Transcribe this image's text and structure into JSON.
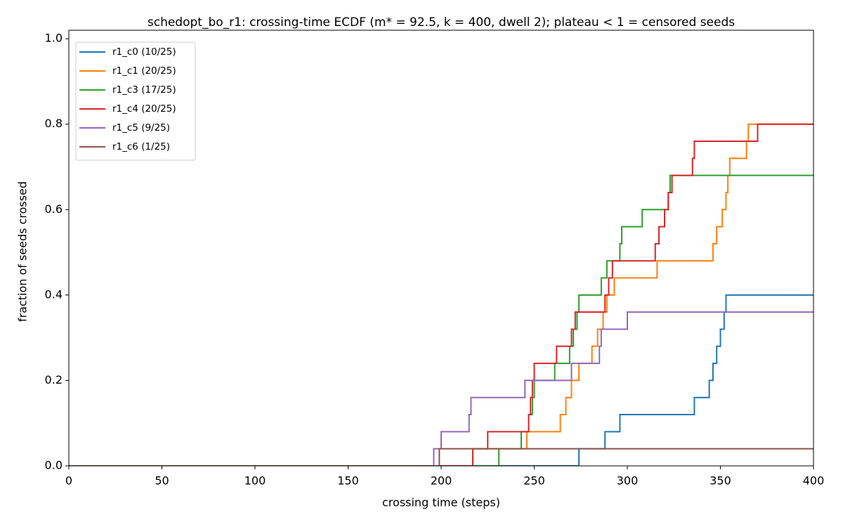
{
  "chart_data": {
    "type": "line",
    "step": "post",
    "title": "schedopt_bo_r1: crossing-time ECDF (m* = 92.5, k = 400, dwell 2); plateau < 1 = censored seeds",
    "x_label": "crossing time (steps)",
    "y_label": "fraction of seeds crossed",
    "xlim": [
      0,
      400
    ],
    "xticks": [
      0,
      50,
      100,
      150,
      200,
      250,
      300,
      350,
      400
    ],
    "ylim": [
      0,
      1.02
    ],
    "yticks": [
      {
        "value": 0,
        "label": "0.0"
      },
      0.2,
      0.4,
      0.6,
      0.8,
      {
        "value": 1,
        "label": "1.0"
      }
    ],
    "grid": false,
    "legend": "upper left",
    "series": [
      {
        "name": "r1_c0 (10/25)",
        "color": "#1f77b4",
        "x": [
          274,
          288,
          296,
          336,
          344,
          346,
          348,
          350,
          352,
          353
        ],
        "values": [
          0.04,
          0.08,
          0.12,
          0.16,
          0.2,
          0.24,
          0.28,
          0.32,
          0.36,
          0.4
        ]
      },
      {
        "name": "r1_c1 (20/25)",
        "color": "#ff7f0e",
        "x": [
          217,
          246,
          264,
          267,
          270,
          274,
          281,
          284,
          287,
          289,
          293,
          316,
          346,
          348,
          351,
          353,
          354,
          355,
          364,
          365
        ],
        "values": [
          0.04,
          0.08,
          0.12,
          0.16,
          0.2,
          0.24,
          0.28,
          0.32,
          0.36,
          0.4,
          0.44,
          0.48,
          0.52,
          0.56,
          0.6,
          0.64,
          0.68,
          0.72,
          0.76,
          0.8
        ]
      },
      {
        "name": "r1_c3 (17/25)",
        "color": "#2ca02c",
        "x": [
          231,
          243,
          247,
          249,
          250,
          261,
          269,
          271,
          273,
          274,
          286,
          289,
          296,
          297,
          308,
          322,
          323
        ],
        "values": [
          0.04,
          0.08,
          0.12,
          0.16,
          0.2,
          0.24,
          0.28,
          0.32,
          0.36,
          0.4,
          0.44,
          0.48,
          0.52,
          0.56,
          0.6,
          0.64,
          0.68
        ]
      },
      {
        "name": "r1_c4 (20/25)",
        "color": "#d62728",
        "x": [
          217,
          225,
          247,
          248,
          249,
          250,
          262,
          270,
          272,
          288,
          290,
          292,
          315,
          317,
          320,
          322,
          324,
          335,
          336,
          370
        ],
        "values": [
          0.04,
          0.08,
          0.12,
          0.16,
          0.2,
          0.24,
          0.28,
          0.32,
          0.36,
          0.4,
          0.44,
          0.48,
          0.52,
          0.56,
          0.6,
          0.64,
          0.68,
          0.72,
          0.76,
          0.8
        ]
      },
      {
        "name": "r1_c5 (9/25)",
        "color": "#9467bd",
        "x": [
          196,
          200,
          215,
          216,
          245,
          270,
          285,
          286,
          300
        ],
        "values": [
          0.04,
          0.08,
          0.12,
          0.16,
          0.2,
          0.24,
          0.28,
          0.32,
          0.36
        ]
      },
      {
        "name": "r1_c6 (1/25)",
        "color": "#8c564b",
        "x": [
          199
        ],
        "values": [
          0.04
        ]
      }
    ]
  }
}
